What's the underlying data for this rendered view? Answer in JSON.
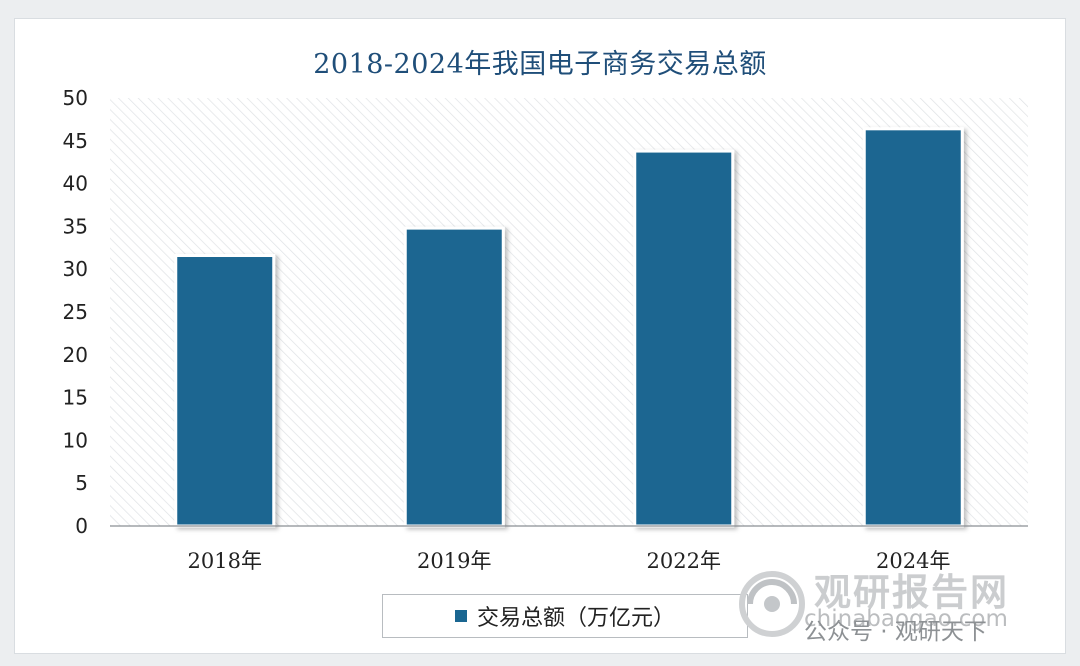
{
  "chart_data": {
    "type": "bar",
    "title": "2018-2024年我国电子商务交易总额",
    "categories": [
      "2018年",
      "2019年",
      "2022年",
      "2024年"
    ],
    "series": [
      {
        "name": "交易总额（万亿元）",
        "values": [
          31.6,
          34.8,
          43.8,
          46.4
        ]
      }
    ],
    "xlabel": "",
    "ylabel": "",
    "ylim": [
      0,
      50
    ],
    "yticks": [
      "0",
      "5",
      "10",
      "15",
      "20",
      "25",
      "30",
      "35",
      "40",
      "45",
      "50"
    ],
    "grid": false,
    "legend_position": "bottom",
    "bar_color": "#1a6691",
    "plot_background": "hatched-light-gray"
  },
  "watermark": {
    "brand": "观研报告网",
    "site": "chinabaogao.com",
    "public_account": "公众号 · 观研天下"
  }
}
